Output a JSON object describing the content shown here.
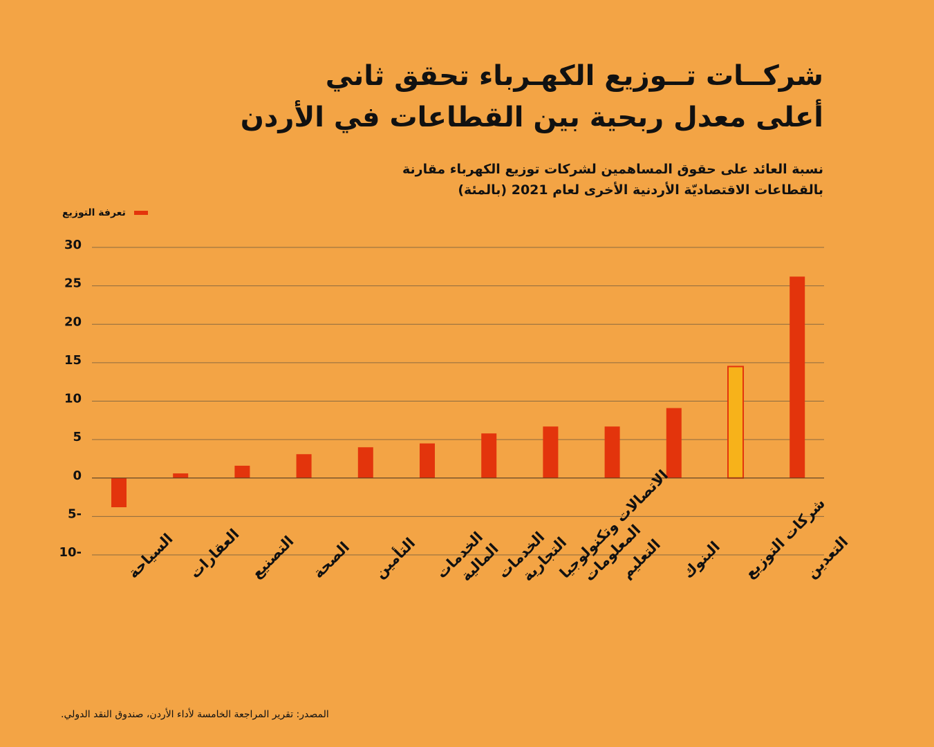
{
  "title_lines": [
    "شركــات تــوزيع الكهـرباء تحقق ثاني",
    "أعلى معدل ربحية بين القطاعات في الأردن"
  ],
  "subtitle_lines": [
    "نسبة العائد على حقوق المساهمين لشركات توزيع الكهرباء مقارنة",
    "بالقطاعات الاقتصاديّة الأردنية الأخرى لعام 2021 (بالمئة)"
  ],
  "legend_label": "تعرفة التوزيع",
  "source": "المصدر: تقرير المراجعة الخامسة لأداء الأردن، صندوق النقد الدولي.",
  "colors": {
    "bar": "#e3340c",
    "highlight": "#f7b21a",
    "highlight_stroke": "#e3340c",
    "grid": "#8a6a40",
    "background": "#f3a445"
  },
  "chart_data": {
    "type": "bar",
    "ylim": [
      -10,
      30
    ],
    "yticks": [
      30,
      25,
      20,
      15,
      10,
      5,
      0,
      -5,
      -10
    ],
    "ytick_labels": [
      "30",
      "25",
      "20",
      "15",
      "10",
      "5",
      "0",
      "5-",
      "10-"
    ],
    "grid": true,
    "legend_position": "top-left",
    "categories": [
      [
        "السياحة"
      ],
      [
        "العقارات"
      ],
      [
        "التصنيع"
      ],
      [
        "الصحة"
      ],
      [
        "التأمين"
      ],
      [
        "الخدمات",
        "المالية"
      ],
      [
        "الخدمات",
        "التجارية"
      ],
      [
        "الاتصالات وتكنولوجيا",
        "المعلومات"
      ],
      [
        "التعليم"
      ],
      [
        "البنوك"
      ],
      [
        "شركات التوزيع"
      ],
      [
        "التعدين"
      ]
    ],
    "highlight_index": 10,
    "series": [
      {
        "name": "تعرفة التوزيع",
        "values": [
          -3.8,
          0.6,
          1.6,
          3.1,
          4.0,
          4.5,
          5.8,
          6.7,
          6.7,
          9.1,
          14.5,
          26.2
        ]
      }
    ]
  }
}
